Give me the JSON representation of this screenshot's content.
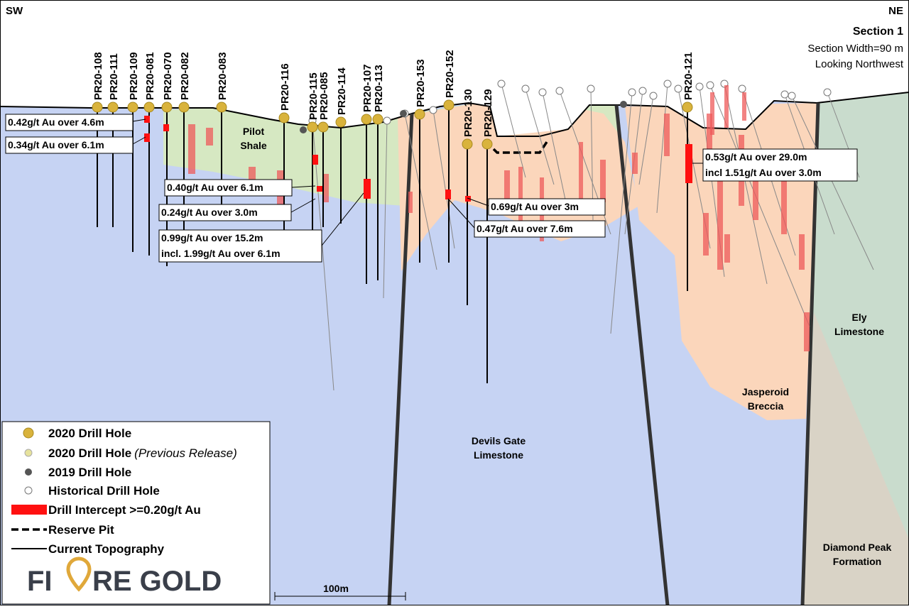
{
  "header": {
    "left": "SW",
    "right": "NE",
    "title": "Section 1",
    "width": "Section Width=90 m",
    "view": "Looking Northwest"
  },
  "drill_holes": [
    "PR20-108",
    "PR20-111",
    "PR20-109",
    "PR20-081",
    "PR20-070",
    "PR20-082",
    "PR20-083",
    "PR20-116",
    "PR20-115",
    "PR20-085",
    "PR20-114",
    "PR20-107",
    "PR20-113",
    "PR20-153",
    "PR20-152",
    "PR20-130",
    "PR20-129",
    "PR20-121"
  ],
  "formations": [
    [
      "Pilot",
      "Shale"
    ],
    [
      "Devils Gate",
      "Limestone"
    ],
    [
      "Jasperoid",
      "Breccia"
    ],
    [
      "Ely",
      "Limestone"
    ],
    [
      "Diamond Peak",
      "Formation"
    ]
  ],
  "intercepts": [
    [
      "0.42g/t Au over 4.6m"
    ],
    [
      "0.34g/t Au over 6.1m"
    ],
    [
      "0.40g/t Au over 6.1m"
    ],
    [
      "0.24g/t Au over 3.0m"
    ],
    [
      "0.99g/t Au over 15.2m",
      "incl. 1.99g/t Au over 6.1m"
    ],
    [
      "0.69g/t Au over 3m"
    ],
    [
      "0.47g/t Au over 7.6m"
    ],
    [
      "0.53g/t Au over 29.0m",
      "incl 1.51g/t Au over 3.0m"
    ]
  ],
  "legend": [
    {
      "label": "2020 Drill Hole"
    },
    {
      "label": "2020 Drill Hole",
      "note": "(Previous Release)"
    },
    {
      "label": "2019 Drill Hole"
    },
    {
      "label": "Historical Drill Hole"
    },
    {
      "label": "Drill Intercept >=0.20g/t Au"
    },
    {
      "label": "Reserve Pit"
    },
    {
      "label": "Current Topography"
    }
  ],
  "logo": {
    "left": "FI",
    "right": "RE GOLD"
  },
  "scale_bar": "100m"
}
